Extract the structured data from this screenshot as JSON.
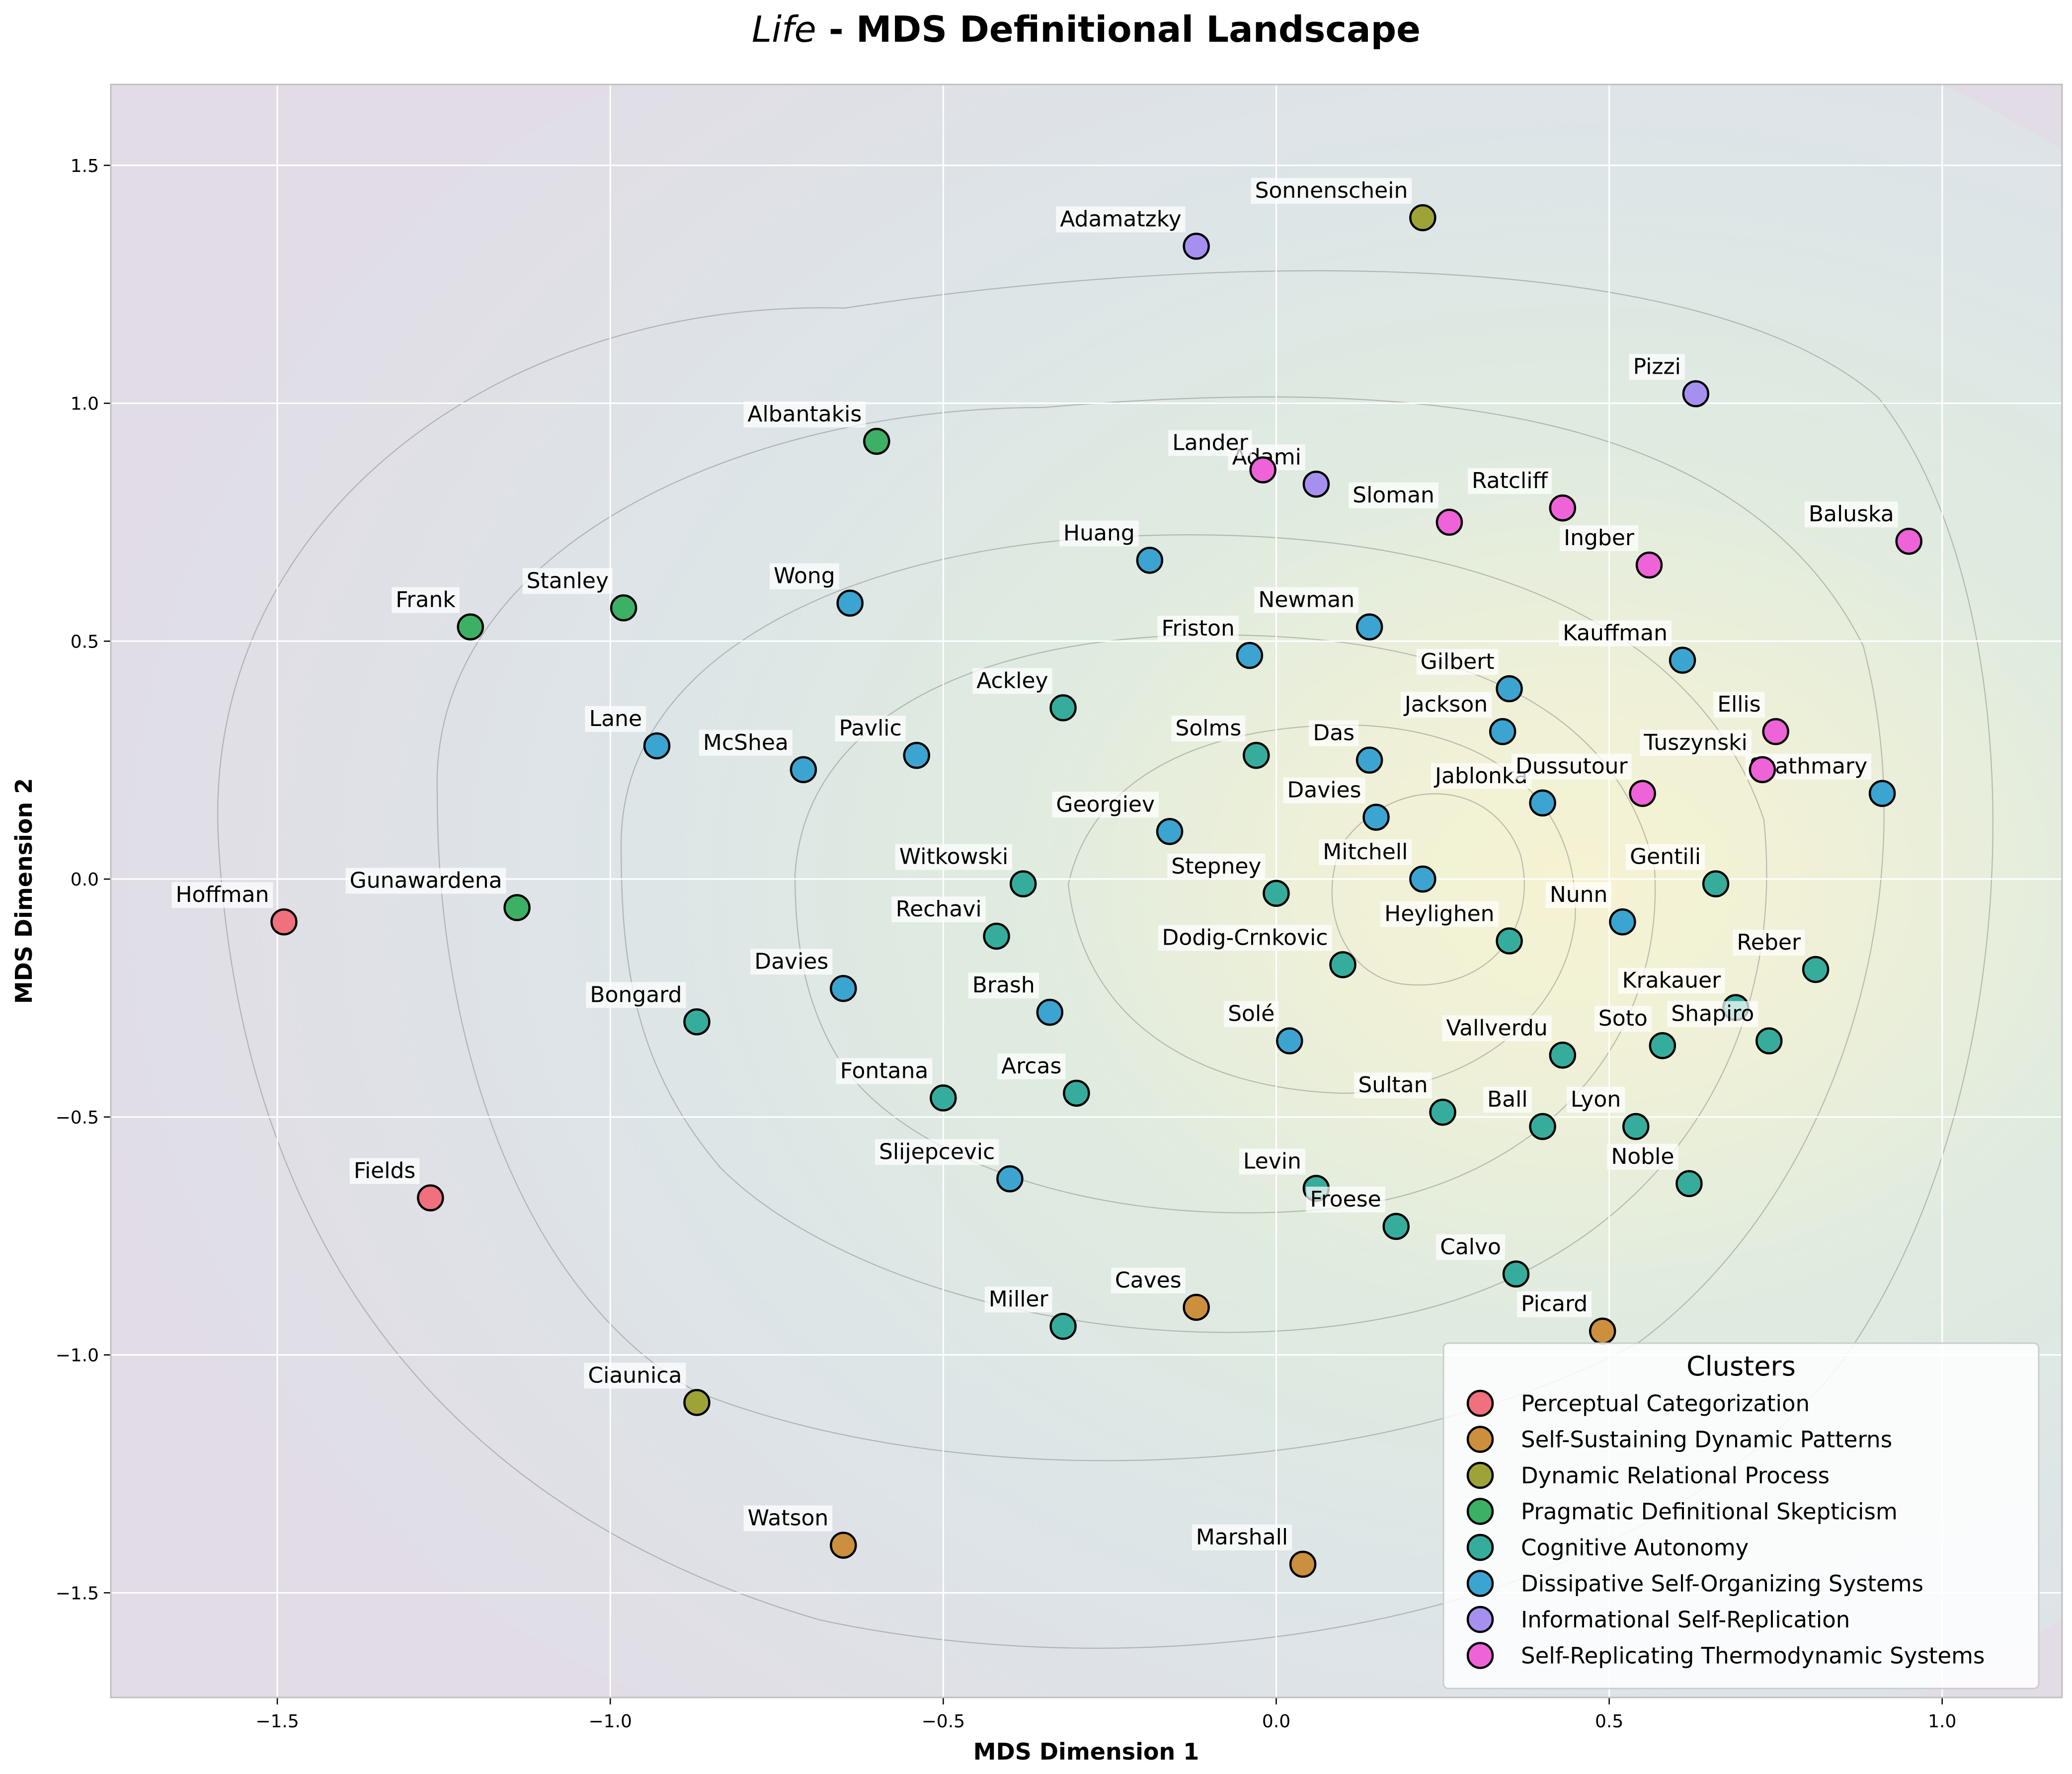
{
  "chart_data": {
    "type": "scatter",
    "title_italic": "Life",
    "title_rest": " - MDS Definitional Landscape",
    "xlabel": "MDS Dimension 1",
    "ylabel": "MDS Dimension 2",
    "xlim": [
      -1.75,
      1.18
    ],
    "ylim": [
      -1.72,
      1.67
    ],
    "xticks": [
      -1.5,
      -1.0,
      -0.5,
      0.0,
      0.5,
      1.0
    ],
    "yticks": [
      -1.5,
      -1.0,
      -0.5,
      0.0,
      0.5,
      1.0,
      1.5
    ],
    "xtick_labels": [
      "−1.5",
      "−1.0",
      "−0.5",
      "0.0",
      "0.5",
      "1.0"
    ],
    "ytick_labels": [
      "−1.5",
      "−1.0",
      "−0.5",
      "0.0",
      "0.5",
      "1.0",
      "1.5"
    ],
    "grid": true,
    "background_contours": true,
    "legend_title": "Clusters",
    "legend_position": "lower-right",
    "clusters": [
      {
        "name": "Perceptual Categorization",
        "color": "#f0707d"
      },
      {
        "name": "Self-Sustaining Dynamic Patterns",
        "color": "#cc8f3d"
      },
      {
        "name": "Dynamic Relational Process",
        "color": "#9da336"
      },
      {
        "name": "Pragmatic Definitional Skepticism",
        "color": "#3cb065"
      },
      {
        "name": "Cognitive Autonomy",
        "color": "#36ad9c"
      },
      {
        "name": "Dissipative Self-Organizing Systems",
        "color": "#3ca4d1"
      },
      {
        "name": "Informational Self-Replication",
        "color": "#a690ef"
      },
      {
        "name": "Self-Replicating Thermodynamic Systems",
        "color": "#ee63d8"
      }
    ],
    "points": [
      {
        "label": "Hoffman",
        "x": -1.49,
        "y": -0.09,
        "cluster": 0
      },
      {
        "label": "Fields",
        "x": -1.27,
        "y": -0.67,
        "cluster": 0
      },
      {
        "label": "Caves",
        "x": -0.12,
        "y": -0.9,
        "cluster": 1
      },
      {
        "label": "Picard",
        "x": 0.49,
        "y": -0.95,
        "cluster": 1
      },
      {
        "label": "Watson",
        "x": -0.65,
        "y": -1.4,
        "cluster": 1
      },
      {
        "label": "Marshall",
        "x": 0.04,
        "y": -1.44,
        "cluster": 1
      },
      {
        "label": "Sonnenschein",
        "x": 0.22,
        "y": 1.39,
        "cluster": 2
      },
      {
        "label": "Ciaunica",
        "x": -0.87,
        "y": -1.1,
        "cluster": 2
      },
      {
        "label": "Albantakis",
        "x": -0.6,
        "y": 0.92,
        "cluster": 3
      },
      {
        "label": "Frank",
        "x": -1.21,
        "y": 0.53,
        "cluster": 3
      },
      {
        "label": "Stanley",
        "x": -0.98,
        "y": 0.57,
        "cluster": 3
      },
      {
        "label": "Gunawardena",
        "x": -1.14,
        "y": -0.06,
        "cluster": 3
      },
      {
        "label": "Ackley",
        "x": -0.32,
        "y": 0.36,
        "cluster": 4
      },
      {
        "label": "Solms",
        "x": -0.03,
        "y": 0.26,
        "cluster": 4
      },
      {
        "label": "Witkowski",
        "x": -0.38,
        "y": -0.01,
        "cluster": 4
      },
      {
        "label": "Stepney",
        "x": 0.0,
        "y": -0.03,
        "cluster": 4
      },
      {
        "label": "Rechavi",
        "x": -0.42,
        "y": -0.12,
        "cluster": 4
      },
      {
        "label": "Heylighen",
        "x": 0.35,
        "y": -0.13,
        "cluster": 4
      },
      {
        "label": "Gentili",
        "x": 0.66,
        "y": -0.01,
        "cluster": 4
      },
      {
        "label": "Dodig-Crnkovic",
        "x": 0.1,
        "y": -0.18,
        "cluster": 4
      },
      {
        "label": "Reber",
        "x": 0.81,
        "y": -0.19,
        "cluster": 4
      },
      {
        "label": "Krakauer",
        "x": 0.69,
        "y": -0.27,
        "cluster": 4
      },
      {
        "label": "Bongard",
        "x": -0.87,
        "y": -0.3,
        "cluster": 4
      },
      {
        "label": "Vallverdu",
        "x": 0.43,
        "y": -0.37,
        "cluster": 4
      },
      {
        "label": "Soto",
        "x": 0.58,
        "y": -0.35,
        "cluster": 4
      },
      {
        "label": "Shapiro",
        "x": 0.74,
        "y": -0.34,
        "cluster": 4
      },
      {
        "label": "Fontana",
        "x": -0.5,
        "y": -0.46,
        "cluster": 4
      },
      {
        "label": "Arcas",
        "x": -0.3,
        "y": -0.45,
        "cluster": 4
      },
      {
        "label": "Sultan",
        "x": 0.25,
        "y": -0.49,
        "cluster": 4
      },
      {
        "label": "Ball",
        "x": 0.4,
        "y": -0.52,
        "cluster": 4
      },
      {
        "label": "Lyon",
        "x": 0.54,
        "y": -0.52,
        "cluster": 4
      },
      {
        "label": "Levin",
        "x": 0.06,
        "y": -0.65,
        "cluster": 4
      },
      {
        "label": "Noble",
        "x": 0.62,
        "y": -0.64,
        "cluster": 4
      },
      {
        "label": "Froese",
        "x": 0.18,
        "y": -0.73,
        "cluster": 4
      },
      {
        "label": "Calvo",
        "x": 0.36,
        "y": -0.83,
        "cluster": 4
      },
      {
        "label": "Miller",
        "x": -0.32,
        "y": -0.94,
        "cluster": 4
      },
      {
        "label": "Huang",
        "x": -0.19,
        "y": 0.67,
        "cluster": 5
      },
      {
        "label": "Wong",
        "x": -0.64,
        "y": 0.58,
        "cluster": 5
      },
      {
        "label": "Newman",
        "x": 0.14,
        "y": 0.53,
        "cluster": 5
      },
      {
        "label": "Friston",
        "x": -0.04,
        "y": 0.47,
        "cluster": 5
      },
      {
        "label": "Kauffman",
        "x": 0.61,
        "y": 0.46,
        "cluster": 5
      },
      {
        "label": "Gilbert",
        "x": 0.35,
        "y": 0.4,
        "cluster": 5
      },
      {
        "label": "Jackson",
        "x": 0.34,
        "y": 0.31,
        "cluster": 5
      },
      {
        "label": "Lane",
        "x": -0.93,
        "y": 0.28,
        "cluster": 5
      },
      {
        "label": "McShea",
        "x": -0.71,
        "y": 0.23,
        "cluster": 5
      },
      {
        "label": "Pavlic",
        "x": -0.54,
        "y": 0.26,
        "cluster": 5
      },
      {
        "label": "Das",
        "x": 0.14,
        "y": 0.25,
        "cluster": 5
      },
      {
        "label": "Szathmary",
        "x": 0.91,
        "y": 0.18,
        "cluster": 5
      },
      {
        "label": "Jablonka",
        "x": 0.4,
        "y": 0.16,
        "cluster": 5
      },
      {
        "label": "Davies",
        "x": 0.15,
        "y": 0.13,
        "cluster": 5
      },
      {
        "label": "Georgiev",
        "x": -0.16,
        "y": 0.1,
        "cluster": 5
      },
      {
        "label": "Mitchell",
        "x": 0.22,
        "y": 0.0,
        "cluster": 5
      },
      {
        "label": "Nunn",
        "x": 0.52,
        "y": -0.09,
        "cluster": 5
      },
      {
        "label": "Davies",
        "x": -0.65,
        "y": -0.23,
        "cluster": 5
      },
      {
        "label": "Brash",
        "x": -0.34,
        "y": -0.28,
        "cluster": 5
      },
      {
        "label": "Solé",
        "x": 0.02,
        "y": -0.34,
        "cluster": 5
      },
      {
        "label": "Slijepcevic",
        "x": -0.4,
        "y": -0.63,
        "cluster": 5
      },
      {
        "label": "Adamatzky",
        "x": -0.12,
        "y": 1.33,
        "cluster": 6
      },
      {
        "label": "Pizzi",
        "x": 0.63,
        "y": 1.02,
        "cluster": 6
      },
      {
        "label": "Adami",
        "x": 0.06,
        "y": 0.83,
        "cluster": 6
      },
      {
        "label": "Lander",
        "x": -0.02,
        "y": 0.86,
        "cluster": 7
      },
      {
        "label": "Sloman",
        "x": 0.26,
        "y": 0.75,
        "cluster": 7
      },
      {
        "label": "Ratcliff",
        "x": 0.43,
        "y": 0.78,
        "cluster": 7
      },
      {
        "label": "Baluska",
        "x": 0.95,
        "y": 0.71,
        "cluster": 7
      },
      {
        "label": "Ingber",
        "x": 0.56,
        "y": 0.66,
        "cluster": 7
      },
      {
        "label": "Ellis",
        "x": 0.75,
        "y": 0.31,
        "cluster": 7
      },
      {
        "label": "Dussutour",
        "x": 0.55,
        "y": 0.18,
        "cluster": 7
      },
      {
        "label": "Tuszynski",
        "x": 0.73,
        "y": 0.23,
        "cluster": 7
      }
    ]
  }
}
